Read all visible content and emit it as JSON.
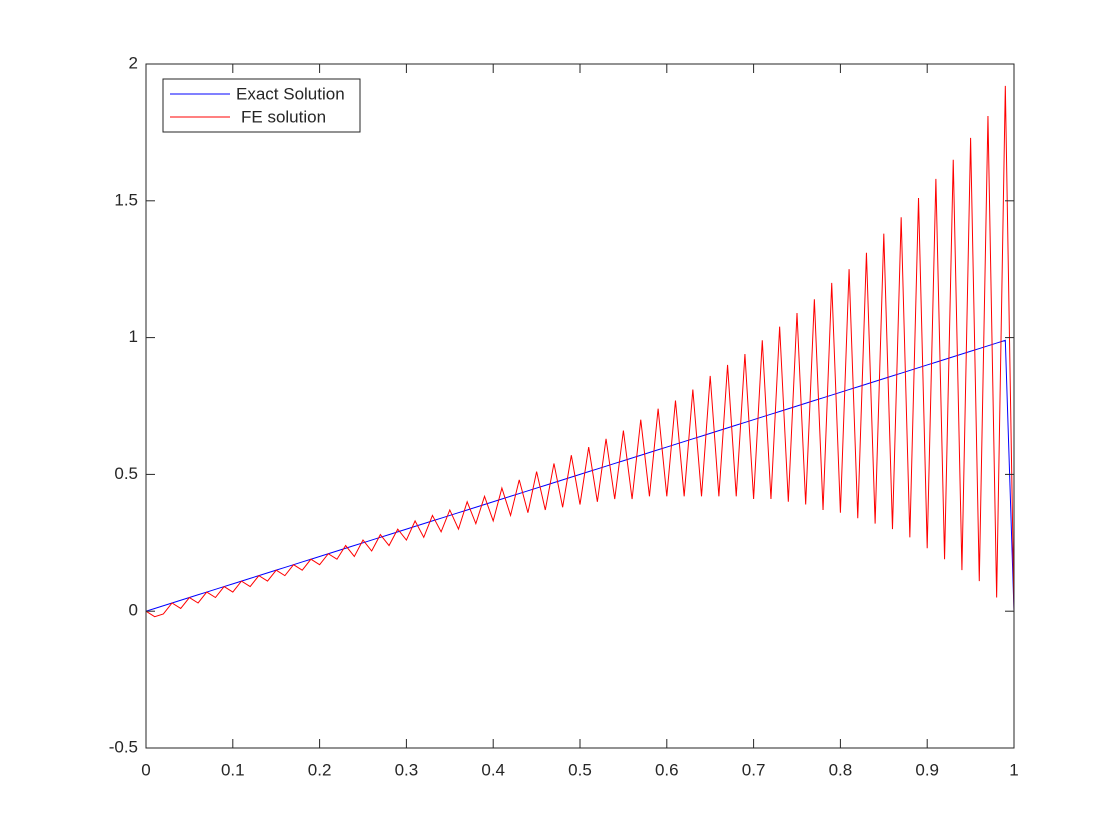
{
  "chart_data": {
    "type": "line",
    "x": [
      0,
      0.01,
      0.02,
      0.03,
      0.04,
      0.05,
      0.06,
      0.07,
      0.08,
      0.09,
      0.1,
      0.11,
      0.12,
      0.13,
      0.14,
      0.15,
      0.16,
      0.17,
      0.18,
      0.19,
      0.2,
      0.21,
      0.22,
      0.23,
      0.24,
      0.25,
      0.26,
      0.27,
      0.28,
      0.29,
      0.3,
      0.31,
      0.32,
      0.33,
      0.34,
      0.35,
      0.36,
      0.37,
      0.38,
      0.39,
      0.4,
      0.41,
      0.42,
      0.43,
      0.44,
      0.45,
      0.46,
      0.47,
      0.48,
      0.49,
      0.5,
      0.51,
      0.52,
      0.53,
      0.54,
      0.55,
      0.56,
      0.57,
      0.58,
      0.59,
      0.6,
      0.61,
      0.62,
      0.63,
      0.64,
      0.65,
      0.66,
      0.67,
      0.68,
      0.69,
      0.7,
      0.71,
      0.72,
      0.73,
      0.74,
      0.75,
      0.76,
      0.77,
      0.78,
      0.79,
      0.8,
      0.81,
      0.82,
      0.83,
      0.84,
      0.85,
      0.86,
      0.87,
      0.88,
      0.89,
      0.9,
      0.91,
      0.92,
      0.93,
      0.94,
      0.95,
      0.96,
      0.97,
      0.98,
      0.99,
      1
    ],
    "series": [
      {
        "name": "Exact Solution",
        "color": "#0000ff",
        "values": [
          0,
          0.01,
          0.02,
          0.03,
          0.04,
          0.05,
          0.06,
          0.07,
          0.08,
          0.09,
          0.1,
          0.11,
          0.12,
          0.13,
          0.14,
          0.15,
          0.16,
          0.17,
          0.18,
          0.19,
          0.2,
          0.21,
          0.22,
          0.23,
          0.24,
          0.25,
          0.26,
          0.27,
          0.28,
          0.29,
          0.3,
          0.31,
          0.32,
          0.33,
          0.34,
          0.35,
          0.36,
          0.37,
          0.38,
          0.39,
          0.4,
          0.41,
          0.42,
          0.43,
          0.44,
          0.45,
          0.46,
          0.47,
          0.48,
          0.49,
          0.5,
          0.51,
          0.52,
          0.53,
          0.54,
          0.55,
          0.56,
          0.57,
          0.58,
          0.59,
          0.6,
          0.61,
          0.62,
          0.63,
          0.64,
          0.65,
          0.66,
          0.67,
          0.68,
          0.69,
          0.7,
          0.71,
          0.72,
          0.73,
          0.74,
          0.75,
          0.76,
          0.77,
          0.78,
          0.79,
          0.8,
          0.81,
          0.82,
          0.83,
          0.84,
          0.85,
          0.86,
          0.87,
          0.88,
          0.89,
          0.9,
          0.91,
          0.92,
          0.93,
          0.94,
          0.95,
          0.96,
          0.97,
          0.98,
          0.99,
          0
        ]
      },
      {
        "name": "FE solution",
        "color": "#ff0000",
        "values": [
          0,
          -0.02,
          -0.01,
          0.03,
          0.01,
          0.05,
          0.03,
          0.07,
          0.05,
          0.09,
          0.07,
          0.11,
          0.09,
          0.13,
          0.11,
          0.15,
          0.13,
          0.17,
          0.15,
          0.19,
          0.17,
          0.21,
          0.19,
          0.24,
          0.2,
          0.26,
          0.22,
          0.28,
          0.24,
          0.3,
          0.26,
          0.33,
          0.27,
          0.35,
          0.29,
          0.37,
          0.3,
          0.4,
          0.32,
          0.42,
          0.33,
          0.45,
          0.35,
          0.48,
          0.36,
          0.51,
          0.37,
          0.54,
          0.38,
          0.57,
          0.39,
          0.6,
          0.4,
          0.63,
          0.41,
          0.66,
          0.41,
          0.7,
          0.42,
          0.74,
          0.42,
          0.77,
          0.42,
          0.81,
          0.42,
          0.86,
          0.42,
          0.9,
          0.42,
          0.94,
          0.41,
          0.99,
          0.41,
          1.04,
          0.4,
          1.09,
          0.39,
          1.14,
          0.37,
          1.2,
          0.36,
          1.25,
          0.34,
          1.31,
          0.32,
          1.38,
          0.3,
          1.44,
          0.27,
          1.51,
          0.23,
          1.58,
          0.19,
          1.65,
          0.15,
          1.73,
          0.11,
          1.81,
          0.05,
          1.92,
          0
        ]
      }
    ],
    "xlim": [
      0,
      1
    ],
    "xticks": [
      0,
      0.1,
      0.2,
      0.3,
      0.4,
      0.5,
      0.6,
      0.7,
      0.8,
      0.9,
      1
    ],
    "ylim": [
      -0.5,
      2
    ],
    "yticks": [
      -0.5,
      0,
      0.5,
      1,
      1.5,
      2
    ],
    "grid": false,
    "legend": "northwest"
  }
}
